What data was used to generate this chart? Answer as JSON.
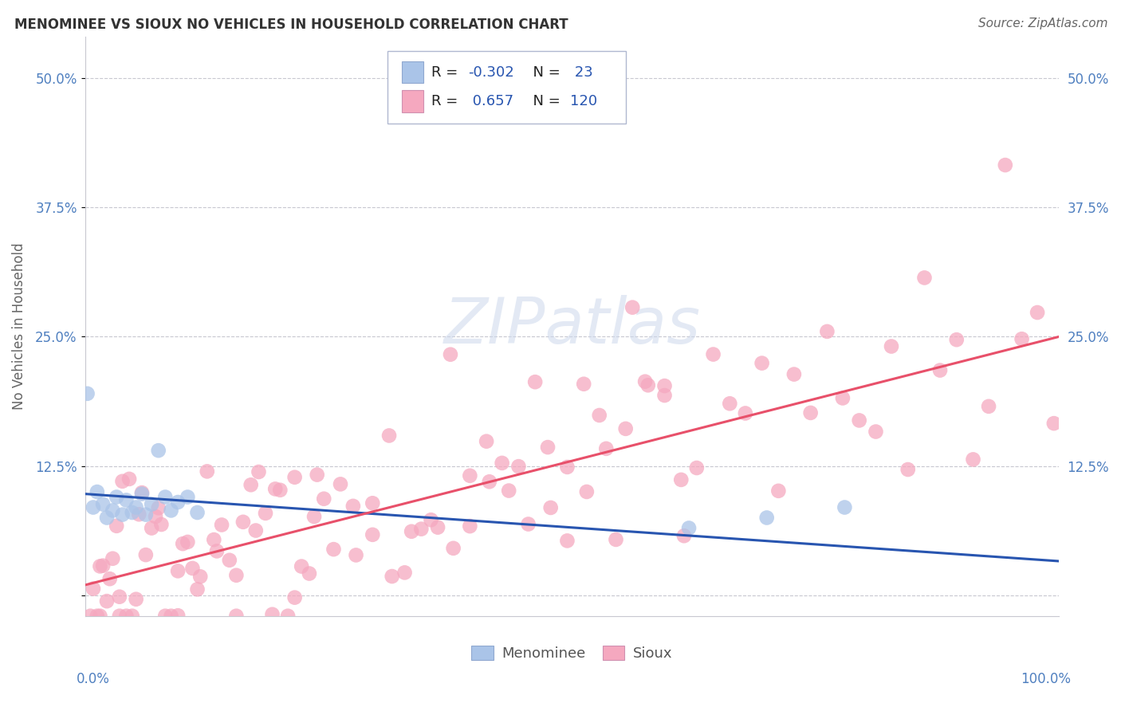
{
  "title": "MENOMINEE VS SIOUX NO VEHICLES IN HOUSEHOLD CORRELATION CHART",
  "source": "Source: ZipAtlas.com",
  "ylabel": "No Vehicles in Household",
  "ytick_labels": [
    "",
    "12.5%",
    "25.0%",
    "37.5%",
    "50.0%"
  ],
  "ytick_values": [
    0.0,
    0.125,
    0.25,
    0.375,
    0.5
  ],
  "xlim": [
    0.0,
    1.0
  ],
  "ylim": [
    -0.02,
    0.54
  ],
  "menominee_color": "#aac4e8",
  "sioux_color": "#f5a8bf",
  "menominee_line_color": "#2855b0",
  "sioux_line_color": "#e8506a",
  "R_menominee": -0.302,
  "N_menominee": 23,
  "R_sioux": 0.657,
  "N_sioux": 120,
  "background_color": "#ffffff",
  "watermark": "ZIPatlas",
  "menominee_intercept": 0.098,
  "menominee_slope": -0.065,
  "sioux_intercept": 0.01,
  "sioux_slope": 0.24,
  "tick_color": "#5080c0",
  "grid_color": "#c8c8d0",
  "title_fontsize": 12,
  "source_fontsize": 11,
  "tick_fontsize": 12,
  "ylabel_fontsize": 12,
  "legend_fontsize": 13,
  "marker_size": 180,
  "marker_alpha": 0.75
}
